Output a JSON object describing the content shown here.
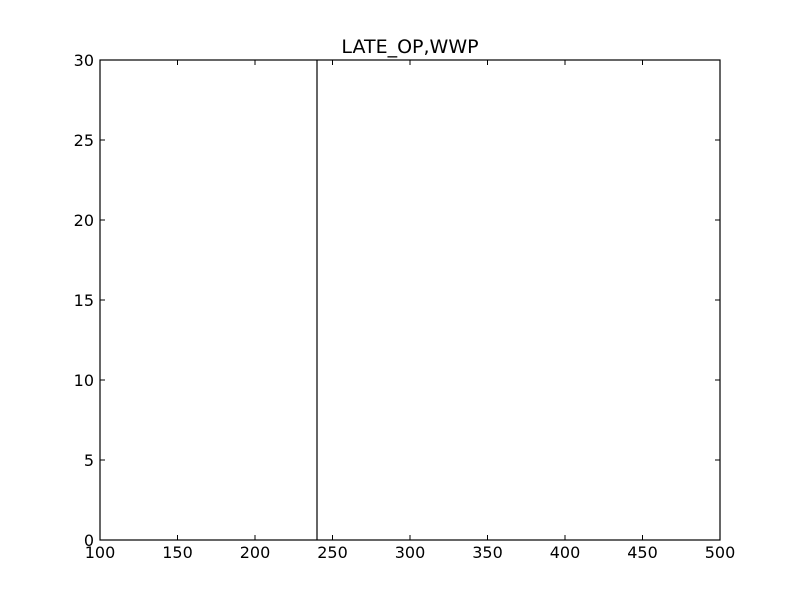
{
  "chart_data": {
    "type": "line",
    "title": "LATE_OP,WWP",
    "xlabel": "",
    "ylabel": "",
    "xlim": [
      100,
      500
    ],
    "ylim": [
      0,
      30
    ],
    "x_ticks": [
      100,
      150,
      200,
      250,
      300,
      350,
      400,
      450,
      500
    ],
    "y_ticks": [
      0,
      5,
      10,
      15,
      20,
      25,
      30
    ],
    "grid": false,
    "legend": "none",
    "series": [
      {
        "color": "#000000",
        "x": [
          240,
          240
        ],
        "y": [
          0,
          30
        ]
      }
    ]
  }
}
